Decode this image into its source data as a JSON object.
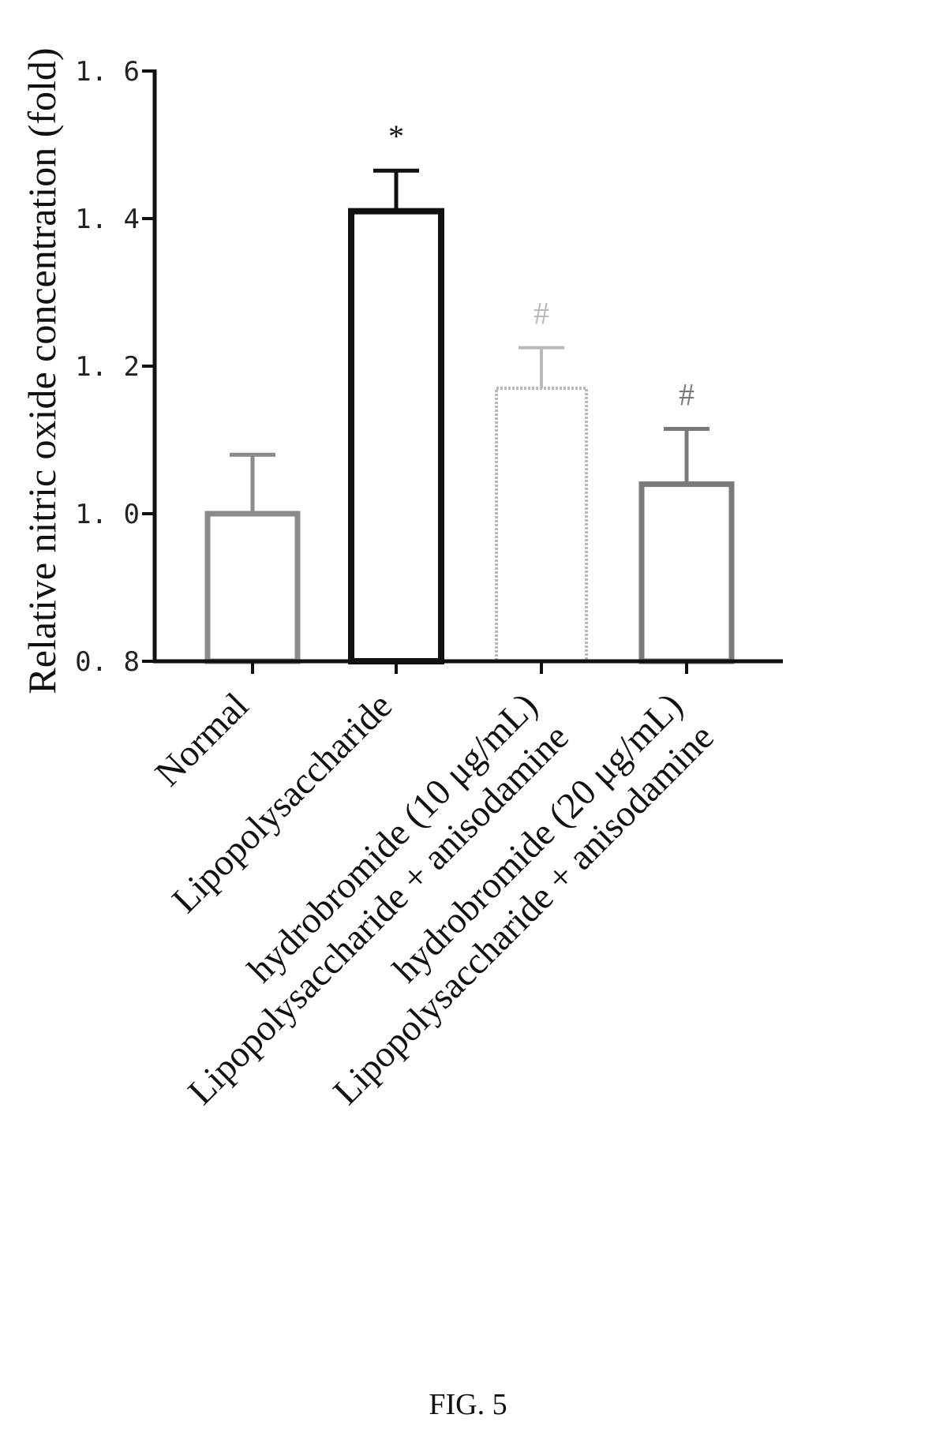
{
  "chart_data": {
    "type": "bar",
    "title": "",
    "xlabel": "",
    "ylabel": "Relative nitric oxide concentration (fold)",
    "ylim": [
      0.8,
      1.6
    ],
    "yticks": [
      0.8,
      1.0,
      1.2,
      1.4,
      1.6
    ],
    "ytick_labels": [
      "0. 8",
      "1. 0",
      "1. 2",
      "1. 4",
      "1. 6"
    ],
    "categories": [
      [
        "Normal"
      ],
      [
        "Lipopolysaccharide"
      ],
      [
        "Lipopolysaccharide + anisodamine",
        "hydrobromide (10 μg/mL)"
      ],
      [
        "Lipopolysaccharide + anisodamine",
        "hydrobromide (20 μg/mL)"
      ]
    ],
    "values": [
      1.0,
      1.41,
      1.17,
      1.04
    ],
    "errors": [
      0.08,
      0.055,
      0.055,
      0.075
    ],
    "significance": [
      "",
      "*",
      "#",
      "#"
    ],
    "bar_colors": [
      "#8a8a8a",
      "#111111",
      "#b9b9b9",
      "#7a7a7a"
    ],
    "bar_styles": [
      "solid",
      "solid",
      "dotted",
      "solid"
    ],
    "grid": false,
    "legend": "none"
  },
  "caption": "FIG. 5"
}
